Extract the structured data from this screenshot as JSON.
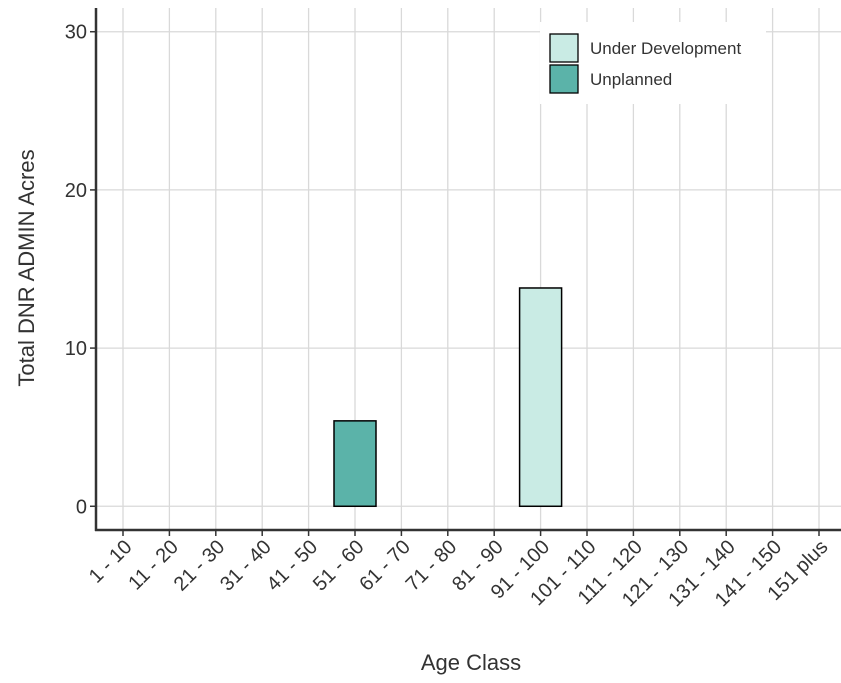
{
  "chart_data": {
    "type": "bar",
    "title": "",
    "xlabel": "Age Class",
    "ylabel": "Total DNR ADMIN Acres",
    "categories": [
      "1 - 10",
      "11 - 20",
      "21 - 30",
      "31 - 40",
      "41 - 50",
      "51 - 60",
      "61 - 70",
      "71 - 80",
      "81 - 90",
      "91 - 100",
      "101 - 110",
      "111 - 120",
      "121 - 130",
      "131 - 140",
      "141 - 150",
      "151 plus"
    ],
    "yticks": [
      "0",
      "10",
      "20",
      "30"
    ],
    "ylim": [
      -1.5,
      31.5
    ],
    "grid": true,
    "legend_position": "top-right",
    "series": [
      {
        "name": "Under Development",
        "color": "#c9ebe4",
        "values": [
          0,
          0,
          0,
          0,
          0,
          0,
          0,
          0,
          0,
          13.8,
          0,
          0,
          0,
          0,
          0,
          0
        ]
      },
      {
        "name": "Unplanned",
        "color": "#5bb3a9",
        "values": [
          0,
          0,
          0,
          0,
          0,
          5.4,
          0,
          0,
          0,
          0,
          0,
          0,
          0,
          0,
          0,
          0
        ]
      }
    ]
  }
}
